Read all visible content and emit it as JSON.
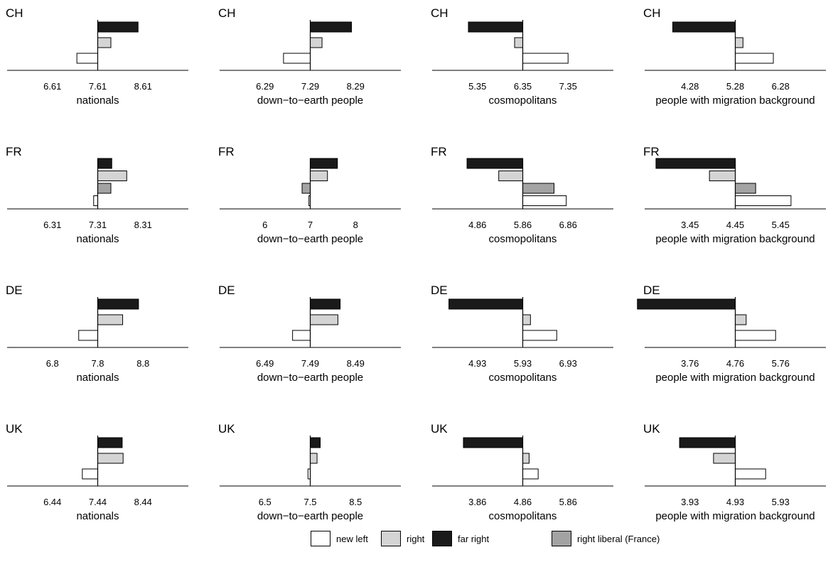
{
  "chart_data": {
    "type": "bar",
    "orientation": "horizontal",
    "legend": {
      "placement": "bottom",
      "entries": [
        {
          "name": "new left",
          "color": "#ffffff"
        },
        {
          "name": "right",
          "color": "#d4d4d4"
        },
        {
          "name": "far right",
          "color": "#1a1a1a"
        },
        {
          "name": "right liberal (France)",
          "color": "#a3a3a3"
        }
      ]
    },
    "panels": [
      {
        "country": "CH",
        "xlabel": "nationals",
        "ticks": [
          "6.61",
          "7.61",
          "8.61"
        ],
        "center": 7.61,
        "xlim": [
          5.61,
          9.61
        ],
        "series": [
          {
            "name": "far right",
            "value": 8.5
          },
          {
            "name": "right",
            "value": 7.9
          },
          {
            "name": "new left",
            "value": 7.15
          }
        ]
      },
      {
        "country": "CH",
        "xlabel": "down−to−earth people",
        "ticks": [
          "6.29",
          "7.29",
          "8.29"
        ],
        "center": 7.29,
        "xlim": [
          5.29,
          9.29
        ],
        "series": [
          {
            "name": "far right",
            "value": 8.2
          },
          {
            "name": "right",
            "value": 7.55
          },
          {
            "name": "new left",
            "value": 6.7
          }
        ]
      },
      {
        "country": "CH",
        "xlabel": "cosmopolitans",
        "ticks": [
          "5.35",
          "6.35",
          "7.35"
        ],
        "center": 6.35,
        "xlim": [
          4.35,
          8.35
        ],
        "series": [
          {
            "name": "far right",
            "value": 5.15
          },
          {
            "name": "right",
            "value": 6.17
          },
          {
            "name": "new left",
            "value": 7.35
          }
        ]
      },
      {
        "country": "CH",
        "xlabel": "people with migration background",
        "ticks": [
          "4.28",
          "5.28",
          "6.28"
        ],
        "center": 5.28,
        "xlim": [
          3.28,
          7.28
        ],
        "series": [
          {
            "name": "far right",
            "value": 3.9
          },
          {
            "name": "right",
            "value": 5.45
          },
          {
            "name": "new left",
            "value": 6.12
          }
        ]
      },
      {
        "country": "FR",
        "xlabel": "nationals",
        "ticks": [
          "6.31",
          "7.31",
          "8.31"
        ],
        "center": 7.31,
        "xlim": [
          5.31,
          9.31
        ],
        "series": [
          {
            "name": "far right",
            "value": 7.62
          },
          {
            "name": "right",
            "value": 7.95
          },
          {
            "name": "right liberal (France)",
            "value": 7.6
          },
          {
            "name": "new left",
            "value": 7.22
          }
        ]
      },
      {
        "country": "FR",
        "xlabel": "down−to−earth people",
        "ticks": [
          "6",
          "7",
          "8"
        ],
        "center": 7,
        "xlim": [
          5,
          9
        ],
        "series": [
          {
            "name": "far right",
            "value": 7.6
          },
          {
            "name": "right",
            "value": 7.38
          },
          {
            "name": "right liberal (France)",
            "value": 6.82
          },
          {
            "name": "new left",
            "value": 6.97
          }
        ]
      },
      {
        "country": "FR",
        "xlabel": "cosmopolitans",
        "ticks": [
          "4.86",
          "5.86",
          "6.86"
        ],
        "center": 5.86,
        "xlim": [
          3.86,
          7.86
        ],
        "series": [
          {
            "name": "far right",
            "value": 4.63
          },
          {
            "name": "right",
            "value": 5.33
          },
          {
            "name": "right liberal (France)",
            "value": 6.55
          },
          {
            "name": "new left",
            "value": 6.82
          }
        ]
      },
      {
        "country": "FR",
        "xlabel": "people with migration background",
        "ticks": [
          "3.45",
          "4.45",
          "5.45"
        ],
        "center": 4.45,
        "xlim": [
          2.45,
          6.45
        ],
        "series": [
          {
            "name": "far right",
            "value": 2.7
          },
          {
            "name": "right",
            "value": 3.88
          },
          {
            "name": "right liberal (France)",
            "value": 4.9
          },
          {
            "name": "new left",
            "value": 5.68
          }
        ]
      },
      {
        "country": "DE",
        "xlabel": "nationals",
        "ticks": [
          "6.8",
          "7.8",
          "8.8"
        ],
        "center": 7.8,
        "xlim": [
          5.8,
          9.8
        ],
        "series": [
          {
            "name": "far right",
            "value": 8.7
          },
          {
            "name": "right",
            "value": 8.35
          },
          {
            "name": "new left",
            "value": 7.38
          }
        ]
      },
      {
        "country": "DE",
        "xlabel": "down−to−earth people",
        "ticks": [
          "6.49",
          "7.49",
          "8.49"
        ],
        "center": 7.49,
        "xlim": [
          5.49,
          9.49
        ],
        "series": [
          {
            "name": "far right",
            "value": 8.15
          },
          {
            "name": "right",
            "value": 8.1
          },
          {
            "name": "new left",
            "value": 7.1
          }
        ]
      },
      {
        "country": "DE",
        "xlabel": "cosmopolitans",
        "ticks": [
          "4.93",
          "5.93",
          "6.93"
        ],
        "center": 5.93,
        "xlim": [
          3.93,
          7.93
        ],
        "series": [
          {
            "name": "far right",
            "value": 4.3
          },
          {
            "name": "right",
            "value": 6.1
          },
          {
            "name": "new left",
            "value": 6.68
          }
        ]
      },
      {
        "country": "DE",
        "xlabel": "people with migration background",
        "ticks": [
          "3.76",
          "4.76",
          "5.76"
        ],
        "center": 4.76,
        "xlim": [
          2.76,
          6.76
        ],
        "series": [
          {
            "name": "far right",
            "value": 2.6
          },
          {
            "name": "right",
            "value": 5.0
          },
          {
            "name": "new left",
            "value": 5.65
          }
        ]
      },
      {
        "country": "UK",
        "xlabel": "nationals",
        "ticks": [
          "6.44",
          "7.44",
          "8.44"
        ],
        "center": 7.44,
        "xlim": [
          5.44,
          9.44
        ],
        "series": [
          {
            "name": "far right",
            "value": 7.98
          },
          {
            "name": "right",
            "value": 8.0
          },
          {
            "name": "new left",
            "value": 7.1
          }
        ]
      },
      {
        "country": "UK",
        "xlabel": "down−to−earth people",
        "ticks": [
          "6.5",
          "7.5",
          "8.5"
        ],
        "center": 7.5,
        "xlim": [
          5.5,
          9.5
        ],
        "series": [
          {
            "name": "far right",
            "value": 7.72
          },
          {
            "name": "right",
            "value": 7.65
          },
          {
            "name": "new left",
            "value": 7.45
          }
        ]
      },
      {
        "country": "UK",
        "xlabel": "cosmopolitans",
        "ticks": [
          "3.86",
          "4.86",
          "5.86"
        ],
        "center": 4.86,
        "xlim": [
          2.86,
          6.86
        ],
        "series": [
          {
            "name": "far right",
            "value": 3.55
          },
          {
            "name": "right",
            "value": 5.0
          },
          {
            "name": "new left",
            "value": 5.2
          }
        ]
      },
      {
        "country": "UK",
        "xlabel": "people with migration background",
        "ticks": [
          "3.93",
          "4.93",
          "5.93"
        ],
        "center": 4.93,
        "xlim": [
          2.93,
          6.93
        ],
        "series": [
          {
            "name": "far right",
            "value": 3.7
          },
          {
            "name": "right",
            "value": 4.45
          },
          {
            "name": "new left",
            "value": 5.6
          }
        ]
      }
    ]
  }
}
